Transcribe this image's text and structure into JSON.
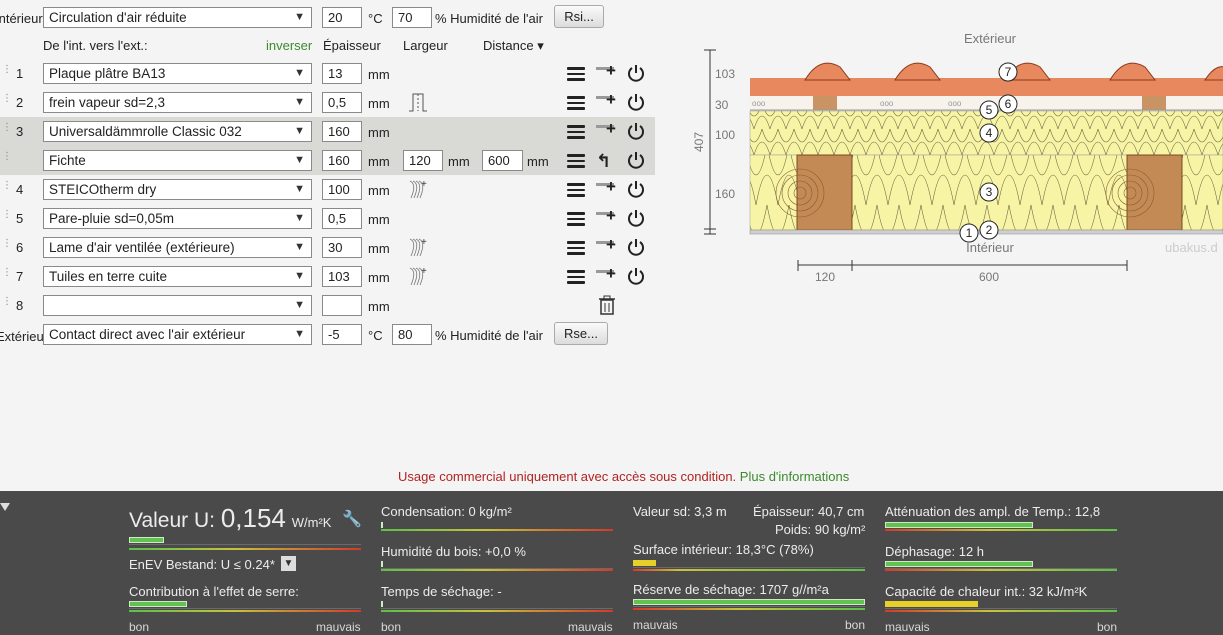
{
  "interior": {
    "label": "Intérieur",
    "select": "Circulation d'air réduite",
    "temp": "20",
    "temp_unit": "°C",
    "humidity": "70",
    "humidity_label": "% Humidité de l'air",
    "btn": "Rsi..."
  },
  "exterior": {
    "label": "Extérieur",
    "select": "Contact direct avec l'air extérieur",
    "temp": "-5",
    "temp_unit": "°C",
    "humidity": "80",
    "humidity_label": "% Humidité de l'air",
    "btn": "Rse..."
  },
  "headers": {
    "direction": "De l'int. vers l'ext.:",
    "invert": "inverser",
    "thickness": "Épaisseur",
    "width": "Largeur",
    "distance": "Distance ▾"
  },
  "layers": [
    {
      "num": "1",
      "material": "Plaque plâtre BA13",
      "thickness": "13",
      "unit": "mm"
    },
    {
      "num": "2",
      "material": "frein vapeur sd=2,3",
      "thickness": "0,5",
      "unit": "mm"
    },
    {
      "num": "3",
      "material": "Universaldämmrolle Classic 032",
      "thickness": "160",
      "unit": "mm"
    },
    {
      "num": "",
      "material": "Fichte",
      "thickness": "160",
      "unit": "mm",
      "width": "120",
      "width_unit": "mm",
      "distance": "600",
      "distance_unit": "mm"
    },
    {
      "num": "4",
      "material": "STEICOtherm dry",
      "thickness": "100",
      "unit": "mm"
    },
    {
      "num": "5",
      "material": "Pare-pluie sd=0,05m",
      "thickness": "0,5",
      "unit": "mm"
    },
    {
      "num": "6",
      "material": "Lame d'air ventilée (extérieure)",
      "thickness": "30",
      "unit": "mm"
    },
    {
      "num": "7",
      "material": "Tuiles en terre cuite",
      "thickness": "103",
      "unit": "mm"
    },
    {
      "num": "8",
      "material": "",
      "thickness": "",
      "unit": "mm"
    }
  ],
  "diagram": {
    "exterior": "Extérieur",
    "interior": "Intérieur",
    "brand": "ubakus.d",
    "total": "407",
    "dims": [
      "103",
      "30",
      "100",
      "160"
    ],
    "bottom_dims": [
      "120",
      "600"
    ],
    "markers": [
      "1",
      "2",
      "3",
      "4",
      "5",
      "6",
      "7"
    ]
  },
  "notice": {
    "text": "Usage commercial uniquement avec accès sous condition.",
    "link": "Plus d'informations"
  },
  "results": {
    "u_label": "Valeur U:",
    "u_value": "0,154",
    "u_unit": "W/m²K",
    "enev": "EnEV Bestand: U ≤ 0.24*",
    "greenhouse": "Contribution à l'effet de serre:",
    "condensation": "Condensation: 0 kg/m²",
    "wood_humidity": "Humidité du bois: +0,0 %",
    "drying_time": "Temps de séchage: -",
    "sd": "Valeur sd: 3,3 m",
    "thickness": "Épaisseur: 40,7 cm",
    "weight": "Poids: 90 kg/m²",
    "surface": "Surface intérieur: 18,3°C (78%)",
    "drying_reserve": "Réserve de séchage: 1707 g//m²a",
    "amplitude": "Atténuation des ampl. de Temp.: 12,8",
    "phase": "Déphasage: 12 h",
    "heat_capacity": "Capacité de chaleur int.: 32 kJ/m²K",
    "good": "bon",
    "bad": "mauvais"
  },
  "gauge_levels": {
    "u_value": 0.15,
    "greenhouse": 0.25,
    "surface": 0.1,
    "drying_reserve": 1.0,
    "amplitude": 0.64,
    "phase": 0.64,
    "heat_capacity": 0.4
  },
  "colors": {
    "accent_green": "#3b8a2e",
    "notice_red": "#b22222",
    "insulation": "#f5f0a8",
    "wood": "#b07a4a",
    "tile": "#e07a55"
  }
}
